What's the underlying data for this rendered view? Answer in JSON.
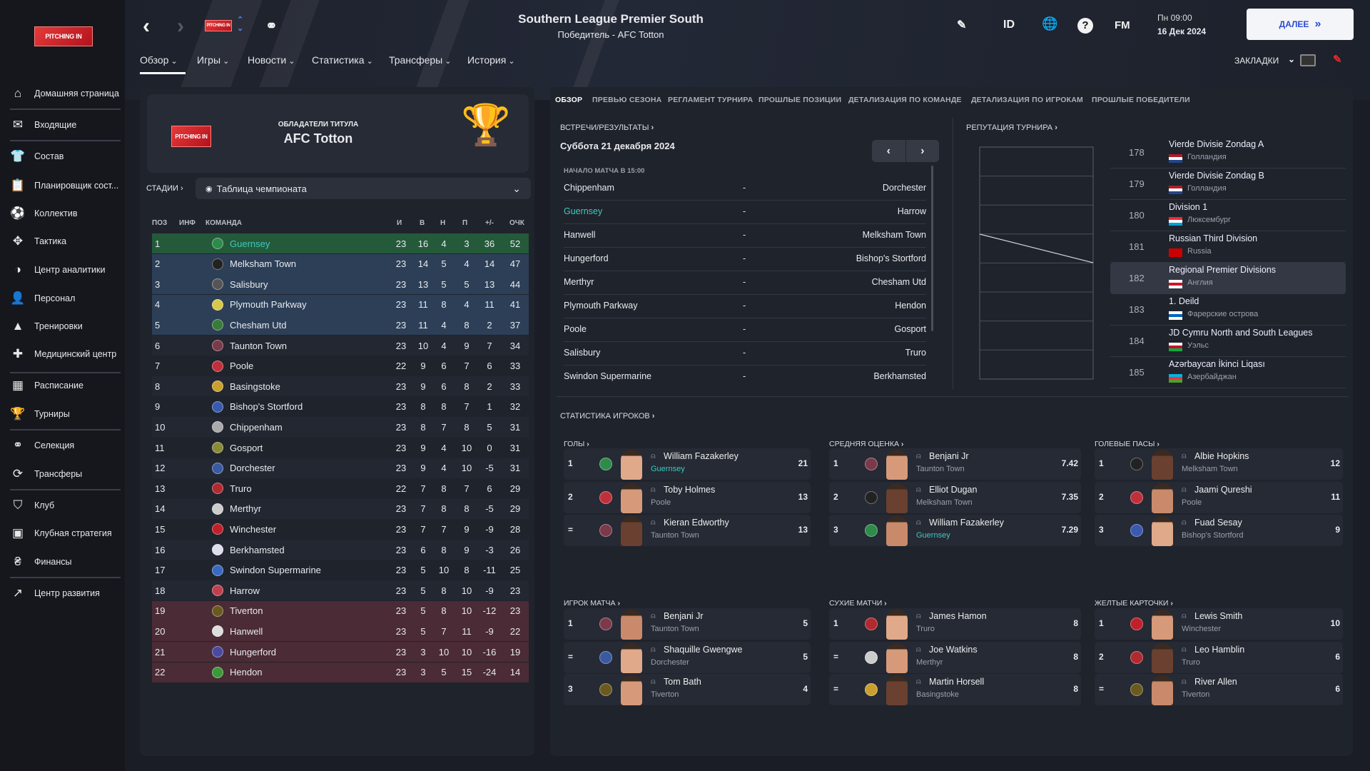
{
  "sidebar": {
    "logo_text": "PITCHING IN",
    "items": [
      {
        "label": "Домашняя страница",
        "icon": "home-icon",
        "g": "⌂"
      },
      {
        "label": "Входящие",
        "icon": "envelope-icon",
        "g": "✉"
      },
      {
        "label": "Состав",
        "icon": "shirt-icon",
        "g": "👕"
      },
      {
        "label": "Планировщик сост...",
        "icon": "clipboard-icon",
        "g": "📋"
      },
      {
        "label": "Коллектив",
        "icon": "ball-icon",
        "g": "⚽"
      },
      {
        "label": "Тактика",
        "icon": "tactics-icon",
        "g": "✥"
      },
      {
        "label": "Центр аналитики",
        "icon": "analytics-icon",
        "g": "◑"
      },
      {
        "label": "Персонал",
        "icon": "staff-icon",
        "g": "👤"
      },
      {
        "label": "Тренировки",
        "icon": "cone-icon",
        "g": "▲"
      },
      {
        "label": "Медицинский центр",
        "icon": "medical-icon",
        "g": "✚"
      },
      {
        "label": "Расписание",
        "icon": "calendar-icon",
        "g": "▦"
      },
      {
        "label": "Турниры",
        "icon": "trophy-icon",
        "g": "🏆"
      },
      {
        "label": "Селекция",
        "icon": "binoculars-icon",
        "g": "⚭"
      },
      {
        "label": "Трансферы",
        "icon": "transfer-icon",
        "g": "⟳"
      },
      {
        "label": "Клуб",
        "icon": "shield-icon",
        "g": "⛉"
      },
      {
        "label": "Клубная стратегия",
        "icon": "strategy-icon",
        "g": "▣"
      },
      {
        "label": "Финансы",
        "icon": "money-icon",
        "g": "₴"
      },
      {
        "label": "Центр развития",
        "icon": "growth-icon",
        "g": "↗"
      }
    ]
  },
  "header": {
    "title": "Southern League Premier South",
    "subtitle": "Победитель - AFC Totton",
    "nav": [
      "Обзор",
      "Игры",
      "Новости",
      "Статистика",
      "Трансферы",
      "История"
    ],
    "id_label": "ID",
    "fm_label": "FM",
    "help": "?",
    "time": "Пн 09:00",
    "date": "16 Дек 2024",
    "continue": "ДАЛЕЕ",
    "bookmarks": "ЗАКЛАДКИ"
  },
  "title_card": {
    "label": "ОБЛАДАТЕЛИ ТИТУЛА",
    "team": "AFC Totton"
  },
  "stage": {
    "label": "СТАДИИ",
    "value": "Таблица чемпионата"
  },
  "table": {
    "headers": [
      "ПОЗ",
      "ИНФ",
      "КОМАНДА",
      "И",
      "В",
      "Н",
      "П",
      "+/-",
      "ОЧК"
    ],
    "rows": [
      [
        "1",
        "Guernsey",
        "23",
        "16",
        "4",
        "3",
        "36",
        "52",
        "#2e8b4a"
      ],
      [
        "2",
        "Melksham Town",
        "23",
        "14",
        "5",
        "4",
        "14",
        "47",
        "#222"
      ],
      [
        "3",
        "Salisbury",
        "23",
        "13",
        "5",
        "5",
        "13",
        "44",
        "#555"
      ],
      [
        "4",
        "Plymouth Parkway",
        "23",
        "11",
        "8",
        "4",
        "11",
        "41",
        "#d8c84a"
      ],
      [
        "5",
        "Chesham Utd",
        "23",
        "11",
        "4",
        "8",
        "2",
        "37",
        "#3a7a3a"
      ],
      [
        "6",
        "Taunton Town",
        "23",
        "10",
        "4",
        "9",
        "7",
        "34",
        "#7a3a4a"
      ],
      [
        "7",
        "Poole",
        "22",
        "9",
        "6",
        "7",
        "6",
        "33",
        "#c0303a"
      ],
      [
        "8",
        "Basingstoke",
        "23",
        "9",
        "6",
        "8",
        "2",
        "33",
        "#c9a030"
      ],
      [
        "9",
        "Bishop's Stortford",
        "23",
        "8",
        "8",
        "7",
        "1",
        "32",
        "#3a5ab0"
      ],
      [
        "10",
        "Chippenham",
        "23",
        "8",
        "7",
        "8",
        "5",
        "31",
        "#aaa"
      ],
      [
        "11",
        "Gosport",
        "23",
        "9",
        "4",
        "10",
        "0",
        "31",
        "#8a8a3a"
      ],
      [
        "12",
        "Dorchester",
        "23",
        "9",
        "4",
        "10",
        "-5",
        "31",
        "#3a5aa0"
      ],
      [
        "13",
        "Truro",
        "22",
        "7",
        "8",
        "7",
        "6",
        "29",
        "#b02a30"
      ],
      [
        "14",
        "Merthyr",
        "23",
        "7",
        "8",
        "8",
        "-5",
        "29",
        "#ccc"
      ],
      [
        "15",
        "Winchester",
        "23",
        "7",
        "7",
        "9",
        "-9",
        "28",
        "#c0202a"
      ],
      [
        "16",
        "Berkhamsted",
        "23",
        "6",
        "8",
        "9",
        "-3",
        "26",
        "#dde"
      ],
      [
        "17",
        "Swindon Supermarine",
        "23",
        "5",
        "10",
        "8",
        "-11",
        "25",
        "#3a6ac0"
      ],
      [
        "18",
        "Harrow",
        "23",
        "5",
        "8",
        "10",
        "-9",
        "23",
        "#c04050"
      ],
      [
        "19",
        "Tiverton",
        "23",
        "5",
        "8",
        "10",
        "-12",
        "23",
        "#6a5a20"
      ],
      [
        "20",
        "Hanwell",
        "23",
        "5",
        "7",
        "11",
        "-9",
        "22",
        "#ddd"
      ],
      [
        "21",
        "Hungerford",
        "23",
        "3",
        "10",
        "10",
        "-16",
        "19",
        "#4a4aa0"
      ],
      [
        "22",
        "Hendon",
        "23",
        "3",
        "5",
        "15",
        "-24",
        "14",
        "#3a9a3a"
      ]
    ]
  },
  "tabs": [
    "ОБЗОР",
    "ПРЕВЬЮ СЕЗОНА",
    "РЕГЛАМЕНТ ТУРНИРА",
    "ПРОШЛЫЕ ПОЗИЦИИ",
    "ДЕТАЛИЗАЦИЯ ПО КОМАНДЕ",
    "ДЕТАЛИЗАЦИЯ ПО ИГРОКАМ",
    "ПРОШЛЫЕ ПОБЕДИТЕЛИ"
  ],
  "fixtures": {
    "title": "ВСТРЕЧИ/РЕЗУЛЬТАТЫ",
    "date": "Суббота 21 декабря 2024",
    "kickoff": "НАЧАЛО МАТЧА В 15:00",
    "matches": [
      [
        "Chippenham",
        "-",
        "Dorchester"
      ],
      [
        "Guernsey",
        "-",
        "Harrow"
      ],
      [
        "Hanwell",
        "-",
        "Melksham Town"
      ],
      [
        "Hungerford",
        "-",
        "Bishop's Stortford"
      ],
      [
        "Merthyr",
        "-",
        "Chesham Utd"
      ],
      [
        "Plymouth Parkway",
        "-",
        "Hendon"
      ],
      [
        "Poole",
        "-",
        "Gosport"
      ],
      [
        "Salisbury",
        "-",
        "Truro"
      ],
      [
        "Swindon Supermarine",
        "-",
        "Berkhamsted"
      ]
    ]
  },
  "reputation": {
    "title": "РЕПУТАЦИЯ ТУРНИРА",
    "items": [
      {
        "rank": "178",
        "name": "Vierde Divisie Zondag A",
        "country": "Голландия",
        "flag": [
          "#ae1c28",
          "#fff",
          "#21468b"
        ]
      },
      {
        "rank": "179",
        "name": "Vierde Divisie Zondag B",
        "country": "Голландия",
        "flag": [
          "#ae1c28",
          "#fff",
          "#21468b"
        ]
      },
      {
        "rank": "180",
        "name": "Division 1",
        "country": "Люксембург",
        "flag": [
          "#ed2939",
          "#fff",
          "#00a1de"
        ]
      },
      {
        "rank": "181",
        "name": "Russian Third Division",
        "country": "Russia",
        "flag": [
          "#cc0000",
          "#cc0000",
          "#cc0000"
        ]
      },
      {
        "rank": "182",
        "name": "Regional Premier Divisions",
        "country": "Англия",
        "flag": [
          "#fff",
          "#cf142b",
          "#fff"
        ],
        "highlight": true
      },
      {
        "rank": "183",
        "name": "1. Deild",
        "country": "Фарерские острова",
        "flag": [
          "#fff",
          "#0065bd",
          "#fff"
        ]
      },
      {
        "rank": "184",
        "name": "JD Cymru North and South Leagues",
        "country": "Уэльс",
        "flag": [
          "#fff",
          "#c8102e",
          "#00b140"
        ]
      },
      {
        "rank": "185",
        "name": "Azərbaycan İkinci Liqası",
        "country": "Азербайджан",
        "flag": [
          "#00b5e2",
          "#ef3340",
          "#509e2f"
        ]
      }
    ]
  },
  "player_stats": {
    "title": "СТАТИСТИКА ИГРОКОВ",
    "groups": [
      {
        "title": "ГОЛЫ",
        "rows": [
          [
            "1",
            "William Fazakerley",
            "Guernsey",
            "21",
            "#2e8b4a"
          ],
          [
            "2",
            "Toby Holmes",
            "Poole",
            "13",
            "#c0303a"
          ],
          [
            "=",
            "Kieran Edworthy",
            "Taunton Town",
            "13",
            "#7a3a4a"
          ]
        ]
      },
      {
        "title": "СРЕДНЯЯ ОЦЕНКА",
        "rows": [
          [
            "1",
            "Benjani Jr",
            "Taunton Town",
            "7.42",
            "#7a3a4a"
          ],
          [
            "2",
            "Elliot Dugan",
            "Melksham Town",
            "7.35",
            "#222"
          ],
          [
            "3",
            "William Fazakerley",
            "Guernsey",
            "7.29",
            "#2e8b4a"
          ]
        ]
      },
      {
        "title": "ГОЛЕВЫЕ ПАСЫ",
        "rows": [
          [
            "1",
            "Albie Hopkins",
            "Melksham Town",
            "12",
            "#222"
          ],
          [
            "2",
            "Jaami Qureshi",
            "Poole",
            "11",
            "#c0303a"
          ],
          [
            "3",
            "Fuad Sesay",
            "Bishop's Stortford",
            "9",
            "#3a5ab0"
          ]
        ]
      },
      {
        "title": "ИГРОК МАТЧА",
        "rows": [
          [
            "1",
            "Benjani Jr",
            "Taunton Town",
            "5",
            "#7a3a4a"
          ],
          [
            "=",
            "Shaquille Gwengwe",
            "Dorchester",
            "5",
            "#3a5aa0"
          ],
          [
            "3",
            "Tom Bath",
            "Tiverton",
            "4",
            "#6a5a20"
          ]
        ]
      },
      {
        "title": "СУХИЕ МАТЧИ",
        "rows": [
          [
            "1",
            "James Hamon",
            "Truro",
            "8",
            "#b02a30"
          ],
          [
            "=",
            "Joe Watkins",
            "Merthyr",
            "8",
            "#ccc"
          ],
          [
            "=",
            "Martin Horsell",
            "Basingstoke",
            "8",
            "#c9a030"
          ]
        ]
      },
      {
        "title": "ЖЕЛТЫЕ КАРТОЧКИ",
        "rows": [
          [
            "1",
            "Lewis Smith",
            "Winchester",
            "10",
            "#c0202a"
          ],
          [
            "2",
            "Leo Hamblin",
            "Truro",
            "6",
            "#b02a30"
          ],
          [
            "=",
            "River Allen",
            "Tiverton",
            "6",
            "#6a5a20"
          ]
        ]
      }
    ]
  },
  "colors": {
    "accent_teal": "#3ec9c0",
    "promotion": "#245a3a",
    "playoff": "#2c3f57",
    "relegation": "#4b2b35",
    "continue_text": "#2a4bd0"
  }
}
